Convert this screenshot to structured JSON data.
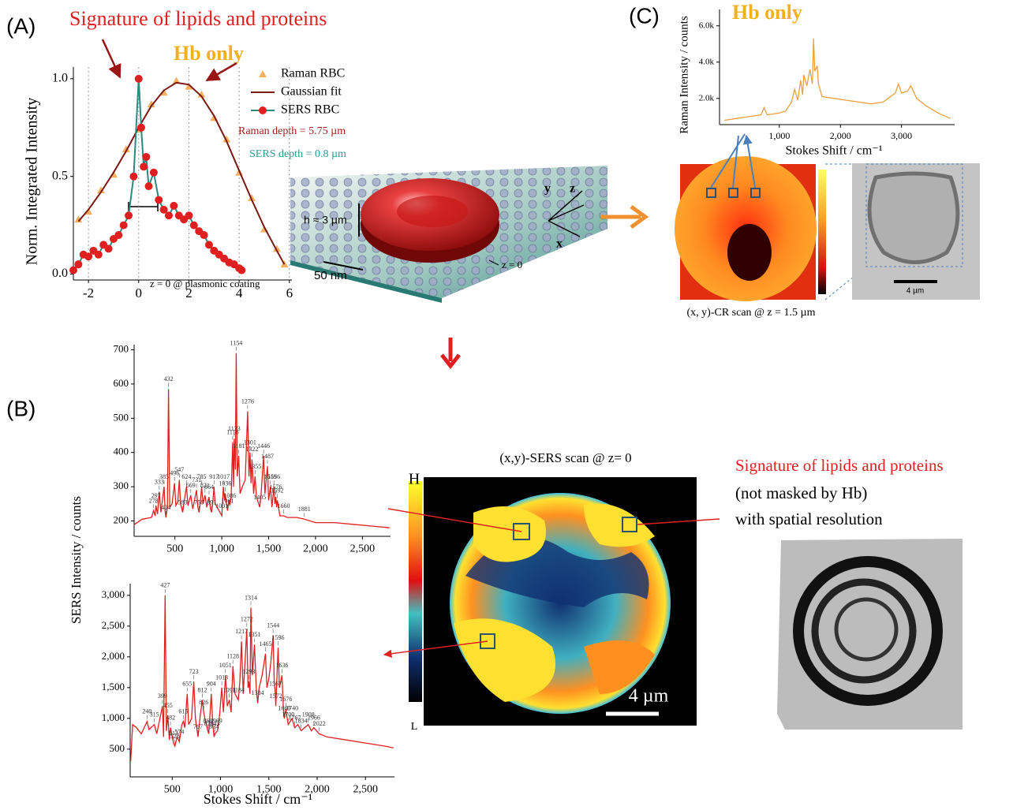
{
  "figure": {
    "panel_labels": [
      "(A)",
      "(B)",
      "(C)"
    ],
    "panel_a": {
      "signature": "Signature of lipids and proteins",
      "hb_only": "Hb only",
      "raman_depth": "Raman depth = 5.75 µm",
      "sers_depth": "SERS depth = 0.8 µm",
      "z_note": "z = 0 @ plasmonic coating",
      "height": "h ≈ 3 µm",
      "scale": "50 nm",
      "axis_x": "x",
      "axis_y": "y",
      "axis_z": "z",
      "z_zero": "z = 0"
    },
    "panel_b": {
      "scan_caption": "(x,y)-SERS scan @ z= 0",
      "scale": "4 µm",
      "colorbar_high": "H",
      "colorbar_low": "L",
      "signature": "Signature of lipids and proteins",
      "note": "(not masked by Hb)",
      "resolution": "with spatial resolution"
    },
    "panel_c": {
      "hb_only": "Hb only",
      "scan_caption": "(x, y)-CR scan @ z = 1.5 µm",
      "scale": "4 µm"
    }
  },
  "chart_data": [
    {
      "type": "line",
      "ylabel": "Norm. Integrated Intensity",
      "xlim": [
        -2.6,
        6.1
      ],
      "ylim": [
        -0.03,
        1.06
      ],
      "xticks": [
        -2,
        0,
        2,
        4,
        6
      ],
      "yticks": [
        {
          "value": 0,
          "label": "0.0"
        },
        0.5,
        {
          "value": 1,
          "label": "1.0"
        }
      ],
      "grid": true,
      "legend": "upper right",
      "series": [
        {
          "name": "Raman RBC",
          "color": "#f5b060",
          "marker": "triangle",
          "line": false,
          "x": [
            -2.4,
            -2,
            -1.5,
            -1,
            -0.5,
            0,
            0.5,
            1,
            1.5,
            2,
            2.5,
            3,
            3.5,
            4,
            4.5,
            5,
            5.5,
            5.8
          ],
          "values": [
            0.28,
            0.32,
            0.43,
            0.51,
            0.64,
            0.74,
            0.87,
            0.93,
            0.99,
            0.96,
            0.92,
            0.8,
            0.69,
            0.52,
            0.39,
            0.23,
            0.13,
            0.05
          ]
        },
        {
          "name": "Gaussian fit",
          "color": "#7a1a12",
          "x": [
            -2.4,
            -2,
            -1.5,
            -1,
            -0.5,
            0,
            0.5,
            1,
            1.5,
            2,
            2.5,
            3,
            3.5,
            4,
            4.5,
            5,
            5.5,
            5.8
          ],
          "values": [
            0.27,
            0.33,
            0.42,
            0.52,
            0.63,
            0.75,
            0.86,
            0.94,
            0.98,
            0.97,
            0.91,
            0.81,
            0.68,
            0.53,
            0.38,
            0.24,
            0.12,
            0.05
          ]
        },
        {
          "name": "SERS RBC",
          "color": "#2a8a80",
          "marker": "circle",
          "marker_color": "#e02020",
          "x": [
            -2.6,
            -2.4,
            -2.2,
            -2,
            -1.8,
            -1.6,
            -1.4,
            -1.2,
            -1,
            -0.8,
            -0.6,
            -0.4,
            -0.2,
            0,
            0.1,
            0.2,
            0.3,
            0.4,
            0.6,
            0.8,
            1,
            1.2,
            1.4,
            1.6,
            1.8,
            2,
            2.2,
            2.4,
            2.6,
            2.8,
            3,
            3.2,
            3.4,
            3.6,
            3.8,
            4,
            4.1
          ],
          "values": [
            0.02,
            0.05,
            0.1,
            0.09,
            0.12,
            0.1,
            0.15,
            0.13,
            0.18,
            0.2,
            0.25,
            0.3,
            0.5,
            1.0,
            0.75,
            0.55,
            0.6,
            0.45,
            0.52,
            0.38,
            0.33,
            0.3,
            0.35,
            0.3,
            0.28,
            0.3,
            0.25,
            0.22,
            0.2,
            0.15,
            0.12,
            0.1,
            0.08,
            0.06,
            0.05,
            0.03,
            0.02
          ]
        }
      ]
    },
    {
      "type": "line",
      "ylabel": "SERS Intensity / counts",
      "xlim": [
        65,
        2800
      ],
      "ylim": [
        155,
        715
      ],
      "xticks": [
        500,
        {
          "value": 1000,
          "label": "1,000"
        },
        {
          "value": 1500,
          "label": "1,500"
        },
        {
          "value": 2000,
          "label": "2,000"
        },
        {
          "value": 2500,
          "label": "2,500"
        }
      ],
      "yticks": [
        200,
        300,
        400,
        500,
        600,
        700
      ],
      "series": [
        {
          "color": "#e02020",
          "x": [
            70,
            150,
            250,
            273,
            290,
            297,
            315,
            333,
            350,
            385,
            395,
            404,
            420,
            432,
            445,
            470,
            496,
            510,
            530,
            547,
            560,
            583,
            600,
            624,
            640,
            669,
            690,
            731,
            745,
            758,
            770,
            785,
            800,
            821,
            840,
            864,
            880,
            891,
            905,
            917,
            930,
            1001,
            1017,
            1030,
            1036,
            1050,
            1061,
            1075,
            1086,
            1100,
            1116,
            1125,
            1133,
            1145,
            1154,
            1165,
            1181,
            1195,
            1220,
            1250,
            1276,
            1290,
            1301,
            1312,
            1322,
            1340,
            1355,
            1370,
            1405,
            1420,
            1446,
            1460,
            1487,
            1500,
            1519,
            1535,
            1556,
            1566,
            1576,
            1585,
            1592,
            1620,
            1660,
            1700,
            1800,
            1881,
            2000,
            2200,
            2400,
            2600,
            2790
          ],
          "values": [
            190,
            205,
            210,
            230,
            215,
            245,
            220,
            285,
            225,
            300,
            230,
            210,
            240,
            585,
            240,
            250,
            310,
            245,
            255,
            320,
            250,
            225,
            260,
            300,
            245,
            275,
            235,
            290,
            240,
            225,
            250,
            300,
            250,
            275,
            240,
            270,
            235,
            225,
            255,
            300,
            250,
            215,
            300,
            260,
            280,
            250,
            230,
            260,
            245,
            270,
            430,
            300,
            440,
            350,
            690,
            330,
            390,
            280,
            300,
            320,
            520,
            330,
            400,
            310,
            380,
            280,
            330,
            270,
            240,
            280,
            390,
            280,
            360,
            260,
            300,
            240,
            300,
            250,
            270,
            240,
            260,
            215,
            215,
            210,
            210,
            205,
            195,
            195,
            190,
            185,
            180
          ]
        }
      ],
      "peaks": [
        273,
        297,
        333,
        385,
        404,
        432,
        496,
        547,
        583,
        624,
        669,
        731,
        758,
        785,
        821,
        864,
        891,
        917,
        1001,
        1017,
        1036,
        1061,
        1086,
        1116,
        1133,
        1154,
        1181,
        1276,
        1301,
        1322,
        1355,
        1405,
        1446,
        1487,
        1519,
        1556,
        1576,
        1592,
        1660,
        1881
      ]
    },
    {
      "type": "line",
      "xlabel": "Stokes Shift / cm⁻¹",
      "xlim": [
        65,
        2800
      ],
      "ylim": [
        50,
        3190
      ],
      "xticks": [
        500,
        {
          "value": 1000,
          "label": "1,000"
        },
        {
          "value": 1500,
          "label": "1,500"
        },
        {
          "value": 2000,
          "label": "2,000"
        },
        {
          "value": 2500,
          "label": "2,500"
        }
      ],
      "yticks": [
        500,
        {
          "value": 1000,
          "label": "1,000"
        },
        {
          "value": 1500,
          "label": "1,500"
        },
        {
          "value": 2000,
          "label": "2,000"
        },
        {
          "value": 2500,
          "label": "2,500"
        },
        {
          "value": 3000,
          "label": "3,000"
        }
      ],
      "series": [
        {
          "color": "#e02020",
          "x": [
            70,
            90,
            130,
            180,
            240,
            260,
            315,
            340,
            399,
            410,
            427,
            440,
            455,
            470,
            482,
            500,
            513,
            528,
            550,
            574,
            600,
            615,
            630,
            655,
            670,
            700,
            723,
            740,
            767,
            790,
            812,
            826,
            845,
            868,
            878,
            904,
            920,
            934,
            943,
            969,
            990,
            1013,
            1030,
            1051,
            1070,
            1091,
            1110,
            1128,
            1150,
            1184,
            1200,
            1217,
            1235,
            1250,
            1272,
            1285,
            1293,
            1305,
            1314,
            1330,
            1351,
            1370,
            1384,
            1400,
            1430,
            1465,
            1480,
            1500,
            1520,
            1544,
            1556,
            1567,
            1572,
            1596,
            1610,
            1636,
            1650,
            1660,
            1676,
            1700,
            1740,
            1767,
            1800,
            1834,
            1870,
            1908,
            1940,
            1966,
            2022,
            2100,
            2300,
            2500,
            2700,
            2790
          ],
          "values": [
            300,
            900,
            850,
            750,
            950,
            820,
            900,
            750,
            1200,
            700,
            3000,
            800,
            1050,
            650,
            850,
            700,
            600,
            550,
            700,
            620,
            900,
            950,
            850,
            1400,
            900,
            1000,
            1600,
            1000,
            700,
            1050,
            1300,
            1100,
            950,
            800,
            750,
            1400,
            900,
            700,
            750,
            800,
            1050,
            1500,
            1100,
            1700,
            1200,
            1300,
            1100,
            1850,
            1400,
            1300,
            1600,
            2250,
            1400,
            1800,
            2450,
            1500,
            1600,
            1400,
            2800,
            1700,
            2200,
            1500,
            1250,
            1500,
            1700,
            2050,
            1500,
            1650,
            1900,
            2350,
            1600,
            1400,
            1200,
            2150,
            1500,
            1700,
            1200,
            1000,
            1150,
            900,
            1000,
            850,
            900,
            800,
            850,
            900,
            800,
            850,
            750,
            700,
            650,
            600,
            550,
            520
          ]
        }
      ],
      "peaks": [
        240,
        315,
        399,
        427,
        455,
        482,
        513,
        528,
        574,
        615,
        655,
        723,
        767,
        812,
        826,
        868,
        878,
        904,
        934,
        943,
        969,
        1013,
        1051,
        1091,
        1128,
        1184,
        1217,
        1272,
        1293,
        1314,
        1351,
        1384,
        1465,
        1544,
        1567,
        1572,
        1596,
        1636,
        1660,
        1676,
        1700,
        1740,
        1767,
        1834,
        1908,
        1966,
        2022
      ]
    },
    {
      "type": "line",
      "xlabel": "Stokes Shift / cm⁻¹",
      "ylabel": "Raman Intensity / counts",
      "xlim": [
        20,
        3870
      ],
      "ylim": [
        560,
        6900
      ],
      "xticks": [
        {
          "value": 1000,
          "label": "1,000"
        },
        {
          "value": 2000,
          "label": "2,000"
        },
        {
          "value": 3000,
          "label": "3,000"
        }
      ],
      "yticks": [
        {
          "value": 2000,
          "label": "2.0k"
        },
        {
          "value": 4000,
          "label": "4.0k"
        },
        {
          "value": 6000,
          "label": "6.0k"
        }
      ],
      "series": [
        {
          "color": "#e8a040",
          "x": [
            100,
            300,
            500,
            700,
            750,
            800,
            1000,
            1100,
            1200,
            1250,
            1300,
            1350,
            1380,
            1400,
            1450,
            1500,
            1540,
            1560,
            1580,
            1620,
            1640,
            1700,
            1900,
            2100,
            2300,
            2500,
            2700,
            2900,
            2950,
            3000,
            3100,
            3150,
            3250,
            3400,
            3600,
            3800
          ],
          "values": [
            800,
            900,
            1000,
            1100,
            1500,
            1100,
            1200,
            1300,
            1800,
            2500,
            1900,
            3000,
            2200,
            3300,
            2700,
            3600,
            2800,
            5300,
            3500,
            3800,
            2800,
            2100,
            2000,
            1900,
            1800,
            1700,
            1800,
            2300,
            2800,
            2300,
            2400,
            2700,
            2000,
            1600,
            1200,
            900
          ]
        }
      ]
    }
  ]
}
